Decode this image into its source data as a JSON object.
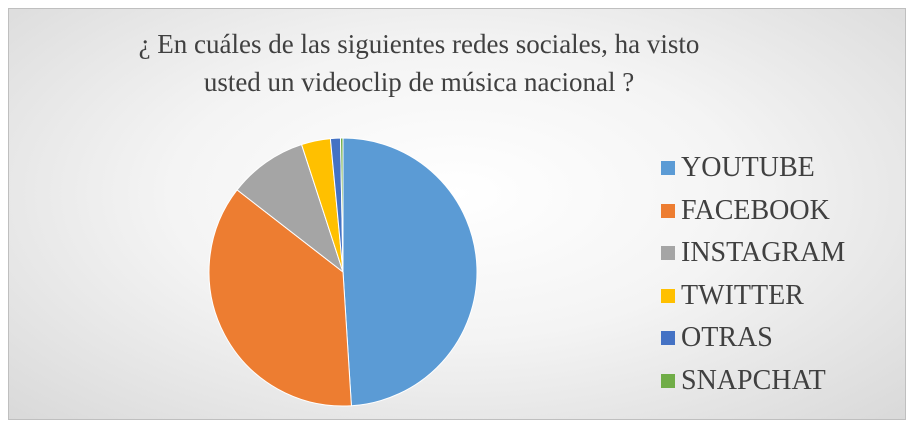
{
  "chart_data": {
    "type": "pie",
    "title_lines": [
      "¿ En cuáles de las siguientes redes sociales, ha visto",
      "usted un videoclip de música nacional ?"
    ],
    "legend_position": "right",
    "slices": [
      {
        "label": "YOUTUBE",
        "value": 49.0,
        "color": "#5B9BD5"
      },
      {
        "label": "FACEBOOK",
        "value": 36.5,
        "color": "#ED7D31"
      },
      {
        "label": "INSTAGRAM",
        "value": 9.5,
        "color": "#A5A5A5"
      },
      {
        "label": "TWITTER",
        "value": 3.5,
        "color": "#FFC000"
      },
      {
        "label": "OTRAS",
        "value": 1.2,
        "color": "#4472C4"
      },
      {
        "label": "SNAPCHAT",
        "value": 0.3,
        "color": "#70AD47"
      }
    ]
  }
}
